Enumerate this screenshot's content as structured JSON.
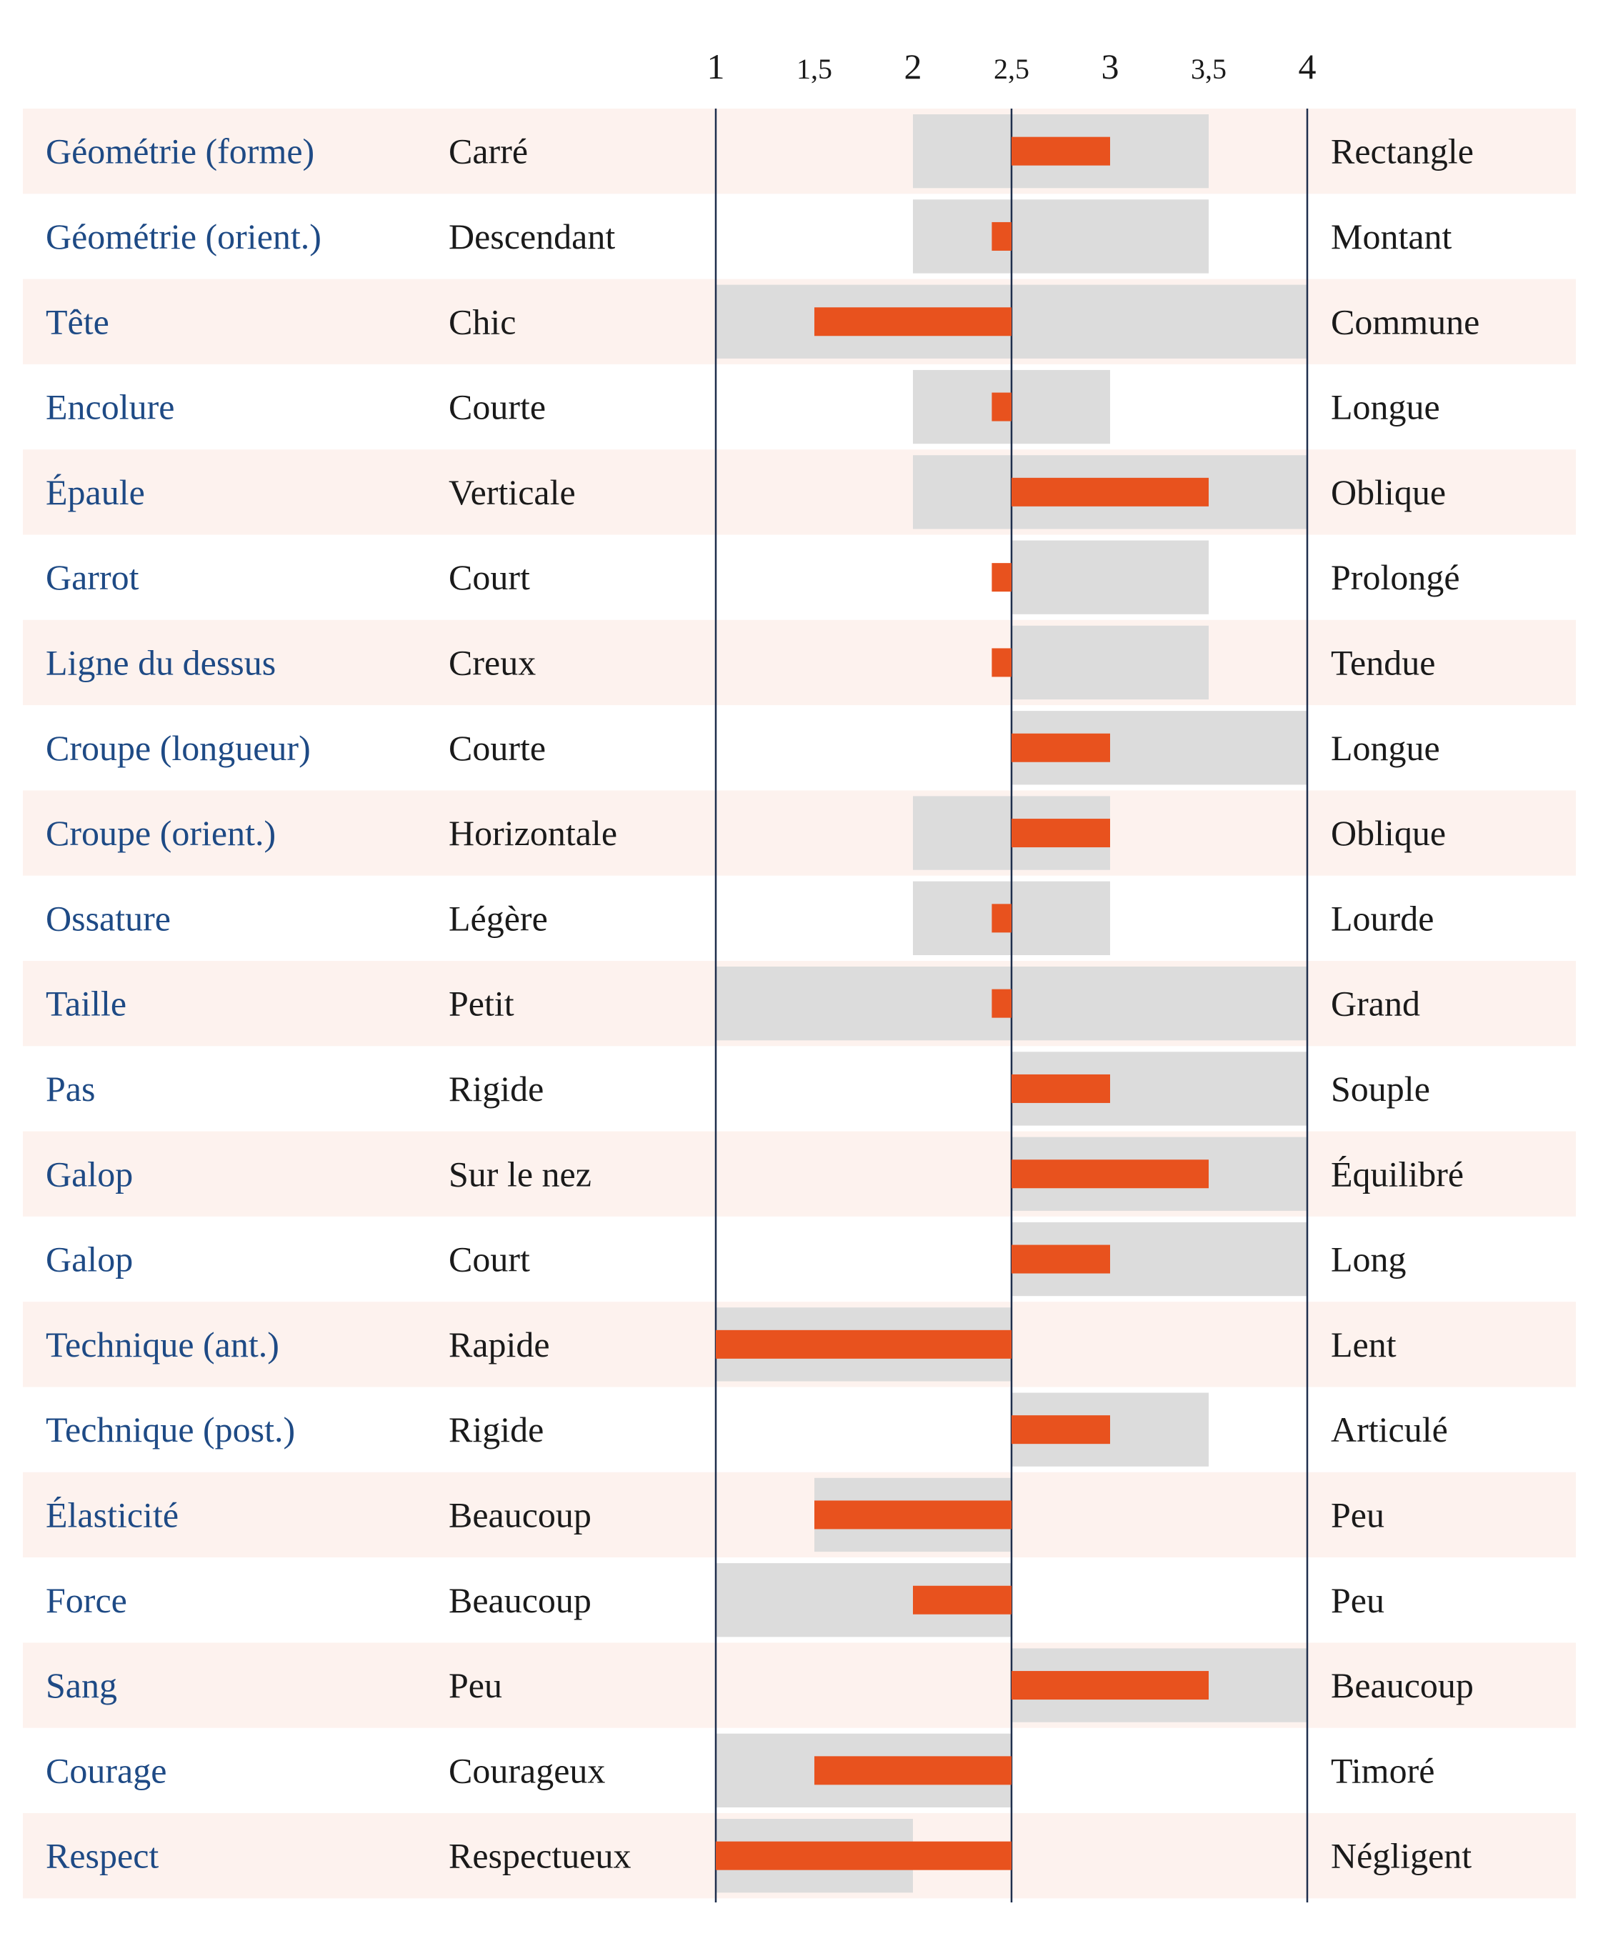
{
  "chart_data": {
    "type": "bar",
    "subtype": "bipolar-profile",
    "title": "",
    "xlim": [
      1,
      4
    ],
    "center_value": 2.5,
    "x_ticks": [
      "1",
      "1,5",
      "2",
      "2,5",
      "3",
      "3,5",
      "4"
    ],
    "tick_values": [
      1,
      1.5,
      2,
      2.5,
      3,
      3.5,
      4
    ],
    "colors": {
      "trait_label": "#1e4a85",
      "pole_label": "#1a1a1a",
      "value_bar": "#e8521e",
      "range_band": "#dcdcdc",
      "stripe": "#fdf2ee",
      "axis_line": "#1f2f4d"
    },
    "rows": [
      {
        "trait": "Géométrie (forme)",
        "low_label": "Carré",
        "high_label": "Rectangle",
        "value": 3,
        "range": [
          2,
          3.5
        ]
      },
      {
        "trait": "Géométrie (orient.)",
        "low_label": "Descendant",
        "high_label": "Montant",
        "value": 2.4,
        "range": [
          2,
          3.5
        ]
      },
      {
        "trait": "Tête",
        "low_label": "Chic",
        "high_label": "Commune",
        "value": 1.5,
        "range": [
          1,
          4
        ]
      },
      {
        "trait": "Encolure",
        "low_label": "Courte",
        "high_label": "Longue",
        "value": 2.4,
        "range": [
          2,
          3
        ]
      },
      {
        "trait": "Épaule",
        "low_label": "Verticale",
        "high_label": "Oblique",
        "value": 3.5,
        "range": [
          2,
          4
        ]
      },
      {
        "trait": "Garrot",
        "low_label": "Court",
        "high_label": "Prolongé",
        "value": 2.4,
        "range": [
          2.5,
          3.5
        ]
      },
      {
        "trait": "Ligne du dessus",
        "low_label": "Creux",
        "high_label": "Tendue",
        "value": 2.4,
        "range": [
          2.5,
          3.5
        ]
      },
      {
        "trait": "Croupe (longueur)",
        "low_label": "Courte",
        "high_label": "Longue",
        "value": 3,
        "range": [
          2.5,
          4
        ]
      },
      {
        "trait": "Croupe (orient.)",
        "low_label": "Horizontale",
        "high_label": "Oblique",
        "value": 3,
        "range": [
          2,
          3
        ]
      },
      {
        "trait": "Ossature",
        "low_label": "Légère",
        "high_label": "Lourde",
        "value": 2.4,
        "range": [
          2,
          3
        ]
      },
      {
        "trait": "Taille",
        "low_label": "Petit",
        "high_label": "Grand",
        "value": 2.4,
        "range": [
          1,
          4
        ]
      },
      {
        "trait": "Pas",
        "low_label": "Rigide",
        "high_label": "Souple",
        "value": 3,
        "range": [
          2.5,
          4
        ]
      },
      {
        "trait": "Galop",
        "low_label": "Sur le nez",
        "high_label": "Équilibré",
        "value": 3.5,
        "range": [
          2.5,
          4
        ]
      },
      {
        "trait": "Galop",
        "low_label": "Court",
        "high_label": "Long",
        "value": 3,
        "range": [
          2.5,
          4
        ]
      },
      {
        "trait": "Technique (ant.)",
        "low_label": "Rapide",
        "high_label": "Lent",
        "value": 1,
        "range": [
          1,
          2.5
        ]
      },
      {
        "trait": "Technique (post.)",
        "low_label": "Rigide",
        "high_label": "Articulé",
        "value": 3,
        "range": [
          2.5,
          3.5
        ]
      },
      {
        "trait": "Élasticité",
        "low_label": "Beaucoup",
        "high_label": "Peu",
        "value": 1.5,
        "range": [
          1.5,
          2.5
        ]
      },
      {
        "trait": "Force",
        "low_label": "Beaucoup",
        "high_label": "Peu",
        "value": 2,
        "range": [
          1,
          2.5
        ]
      },
      {
        "trait": "Sang",
        "low_label": "Peu",
        "high_label": "Beaucoup",
        "value": 3.5,
        "range": [
          2.5,
          4
        ]
      },
      {
        "trait": "Courage",
        "low_label": "Courageux",
        "high_label": "Timoré",
        "value": 1.5,
        "range": [
          1,
          2.5
        ]
      },
      {
        "trait": "Respect",
        "low_label": "Respectueux",
        "high_label": "Négligent",
        "value": 1,
        "range": [
          1,
          2
        ]
      }
    ]
  }
}
